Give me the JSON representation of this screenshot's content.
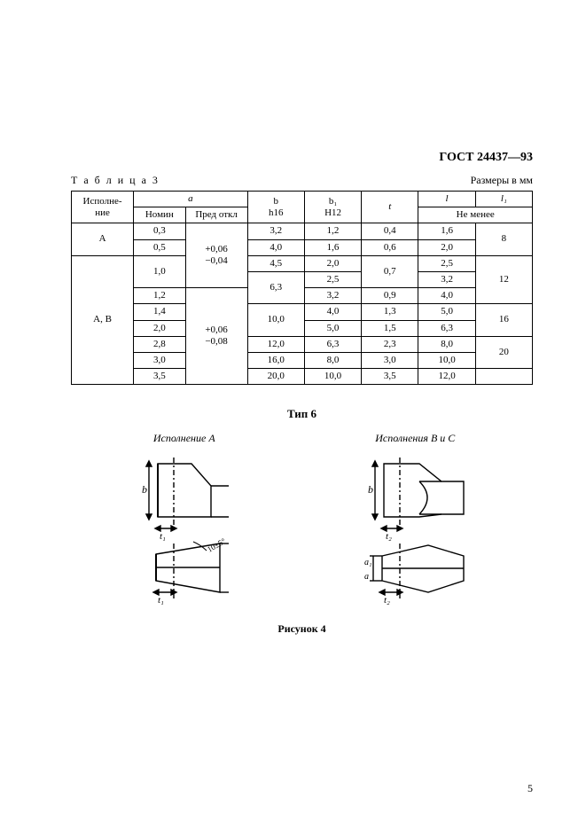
{
  "doc_code": "ГОСТ 24437—93",
  "table_label": "Т а б л и ц а   3",
  "dimensions_note": "Размеры в мм",
  "headers": {
    "execution": "Исполне-\nние",
    "a": "a",
    "nomin": "Номин",
    "pred": "Пред откл",
    "b": "b\nh16",
    "b1": "b₁\nH12",
    "t": "t",
    "l": "l",
    "l1": "l₁",
    "not_less": "Не менее"
  },
  "rows": [
    {
      "ex": "A",
      "ex_rowspan": 2,
      "nomin": "0,3",
      "pred": "+0,06\n−0,04",
      "pred_rowspan": 4,
      "b": "3,2",
      "b1": "1,2",
      "t": "0,4",
      "l": "1,6",
      "l1": "8",
      "l1_rowspan": 2
    },
    {
      "nomin": "0,5",
      "b": "4,0",
      "b1": "1,6",
      "t": "0,6",
      "l": "2,0"
    },
    {
      "ex": "A, B",
      "ex_rowspan": 9,
      "nomin": "1,0",
      "nomin_rowspan": 2,
      "b": "4,5",
      "b1": "2,0",
      "t": "0,7",
      "t_rowspan": 2,
      "l": "2,5",
      "l1": "12",
      "l1_rowspan": 3
    },
    {
      "b": "6,3",
      "b_rowspan": 2,
      "b1": "2,5",
      "l": "3,2"
    },
    {
      "nomin": "1,2",
      "pred": "+0,06\n−0,08",
      "pred_rowspan": 7,
      "b1": "3,2",
      "t": "0,9",
      "l": "4,0"
    },
    {
      "nomin": "1,4",
      "b": "10,0",
      "b_rowspan": 2,
      "b1": "4,0",
      "t": "1,3",
      "l": "5,0",
      "l1": "16",
      "l1_rowspan": 2
    },
    {
      "nomin": "2,0",
      "b1": "5,0",
      "t": "1,5",
      "l": "6,3"
    },
    {
      "nomin": "2,8",
      "b": "12,0",
      "b1": "6,3",
      "t": "2,3",
      "l": "8,0",
      "l1": "20",
      "l1_rowspan": 2
    },
    {
      "nomin": "3,0",
      "b": "16,0",
      "b1": "8,0",
      "t": "3,0",
      "l": "10,0"
    },
    {
      "nomin": "3,5",
      "b": "20,0",
      "b1": "10,0",
      "t": "3,5",
      "l": "12,0",
      "l1": "",
      "l1_rowspan": 1
    }
  ],
  "type_title": "Тип 6",
  "fig_a_label": "Исполнение А",
  "fig_bc_label": "Исполнения В и С",
  "figure_caption": "Рисунок 4",
  "page_number": "5",
  "style": {
    "stroke": "#000000",
    "hatch": "#000000",
    "font": "Times New Roman"
  }
}
